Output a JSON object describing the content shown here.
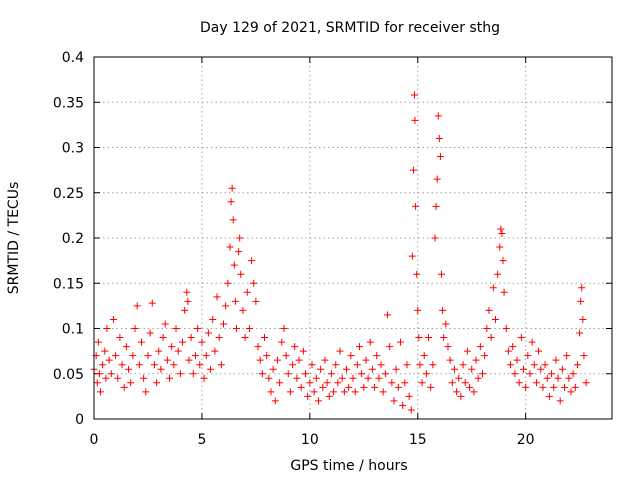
{
  "chart_data": {
    "type": "scatter",
    "title": "Day 129 of 2021, SRMTID for receiver sthg",
    "xlabel": "GPS time / hours",
    "ylabel": "SRMTID / TECUs",
    "xlim": [
      0,
      24
    ],
    "ylim": [
      0,
      0.4
    ],
    "xticks": [
      0,
      5,
      10,
      15,
      20
    ],
    "xtick_labels": [
      "0",
      "5",
      "10",
      "15",
      "20"
    ],
    "yticks": [
      0,
      0.05,
      0.1,
      0.15,
      0.2,
      0.25,
      0.3,
      0.35,
      0.4
    ],
    "ytick_labels": [
      "0",
      "0.05",
      "0.1",
      "0.15",
      "0.2",
      "0.25",
      "0.3",
      "0.35",
      "0.4"
    ],
    "grid": true,
    "marker": "plus",
    "color": "#ff0000",
    "series": [
      {
        "name": "SRMTID",
        "points": [
          [
            0.0,
            0.055
          ],
          [
            0.1,
            0.07
          ],
          [
            0.15,
            0.04
          ],
          [
            0.2,
            0.085
          ],
          [
            0.25,
            0.05
          ],
          [
            0.3,
            0.03
          ],
          [
            0.4,
            0.06
          ],
          [
            0.5,
            0.075
          ],
          [
            0.55,
            0.045
          ],
          [
            0.6,
            0.1
          ],
          [
            0.7,
            0.065
          ],
          [
            0.8,
            0.05
          ],
          [
            0.9,
            0.11
          ],
          [
            1.0,
            0.07
          ],
          [
            1.1,
            0.045
          ],
          [
            1.2,
            0.09
          ],
          [
            1.3,
            0.06
          ],
          [
            1.4,
            0.035
          ],
          [
            1.5,
            0.08
          ],
          [
            1.6,
            0.055
          ],
          [
            1.7,
            0.04
          ],
          [
            1.8,
            0.07
          ],
          [
            1.9,
            0.1
          ],
          [
            2.0,
            0.125
          ],
          [
            2.1,
            0.06
          ],
          [
            2.2,
            0.085
          ],
          [
            2.3,
            0.045
          ],
          [
            2.4,
            0.03
          ],
          [
            2.5,
            0.07
          ],
          [
            2.6,
            0.095
          ],
          [
            2.7,
            0.128
          ],
          [
            2.8,
            0.06
          ],
          [
            2.9,
            0.04
          ],
          [
            3.0,
            0.075
          ],
          [
            3.1,
            0.055
          ],
          [
            3.2,
            0.09
          ],
          [
            3.3,
            0.105
          ],
          [
            3.4,
            0.065
          ],
          [
            3.5,
            0.045
          ],
          [
            3.6,
            0.08
          ],
          [
            3.7,
            0.06
          ],
          [
            3.8,
            0.1
          ],
          [
            3.9,
            0.075
          ],
          [
            4.0,
            0.05
          ],
          [
            4.1,
            0.085
          ],
          [
            4.2,
            0.12
          ],
          [
            4.3,
            0.14
          ],
          [
            4.35,
            0.13
          ],
          [
            4.4,
            0.065
          ],
          [
            4.5,
            0.09
          ],
          [
            4.6,
            0.05
          ],
          [
            4.7,
            0.07
          ],
          [
            4.8,
            0.1
          ],
          [
            4.9,
            0.06
          ],
          [
            5.0,
            0.085
          ],
          [
            5.1,
            0.045
          ],
          [
            5.2,
            0.07
          ],
          [
            5.3,
            0.095
          ],
          [
            5.4,
            0.055
          ],
          [
            5.5,
            0.11
          ],
          [
            5.6,
            0.075
          ],
          [
            5.7,
            0.135
          ],
          [
            5.8,
            0.09
          ],
          [
            5.9,
            0.06
          ],
          [
            6.0,
            0.105
          ],
          [
            6.1,
            0.125
          ],
          [
            6.2,
            0.15
          ],
          [
            6.3,
            0.19
          ],
          [
            6.35,
            0.24
          ],
          [
            6.4,
            0.255
          ],
          [
            6.45,
            0.22
          ],
          [
            6.5,
            0.17
          ],
          [
            6.55,
            0.13
          ],
          [
            6.6,
            0.1
          ],
          [
            6.7,
            0.185
          ],
          [
            6.75,
            0.2
          ],
          [
            6.8,
            0.16
          ],
          [
            6.9,
            0.12
          ],
          [
            7.0,
            0.09
          ],
          [
            7.1,
            0.14
          ],
          [
            7.2,
            0.1
          ],
          [
            7.3,
            0.175
          ],
          [
            7.4,
            0.15
          ],
          [
            7.5,
            0.13
          ],
          [
            7.6,
            0.08
          ],
          [
            7.7,
            0.065
          ],
          [
            7.8,
            0.05
          ],
          [
            7.9,
            0.09
          ],
          [
            8.0,
            0.07
          ],
          [
            8.1,
            0.045
          ],
          [
            8.2,
            0.03
          ],
          [
            8.3,
            0.055
          ],
          [
            8.4,
            0.02
          ],
          [
            8.5,
            0.065
          ],
          [
            8.6,
            0.04
          ],
          [
            8.7,
            0.085
          ],
          [
            8.8,
            0.1
          ],
          [
            8.9,
            0.07
          ],
          [
            9.0,
            0.05
          ],
          [
            9.1,
            0.03
          ],
          [
            9.2,
            0.06
          ],
          [
            9.3,
            0.08
          ],
          [
            9.4,
            0.045
          ],
          [
            9.5,
            0.065
          ],
          [
            9.6,
            0.035
          ],
          [
            9.7,
            0.075
          ],
          [
            9.8,
            0.05
          ],
          [
            9.9,
            0.025
          ],
          [
            10.0,
            0.04
          ],
          [
            10.1,
            0.06
          ],
          [
            10.2,
            0.03
          ],
          [
            10.3,
            0.045
          ],
          [
            10.4,
            0.02
          ],
          [
            10.5,
            0.055
          ],
          [
            10.6,
            0.035
          ],
          [
            10.7,
            0.065
          ],
          [
            10.8,
            0.04
          ],
          [
            10.9,
            0.025
          ],
          [
            11.0,
            0.05
          ],
          [
            11.1,
            0.03
          ],
          [
            11.2,
            0.06
          ],
          [
            11.3,
            0.04
          ],
          [
            11.4,
            0.075
          ],
          [
            11.5,
            0.045
          ],
          [
            11.6,
            0.03
          ],
          [
            11.7,
            0.055
          ],
          [
            11.8,
            0.035
          ],
          [
            11.9,
            0.07
          ],
          [
            12.0,
            0.045
          ],
          [
            12.1,
            0.03
          ],
          [
            12.2,
            0.06
          ],
          [
            12.3,
            0.08
          ],
          [
            12.4,
            0.05
          ],
          [
            12.5,
            0.035
          ],
          [
            12.6,
            0.065
          ],
          [
            12.7,
            0.045
          ],
          [
            12.8,
            0.085
          ],
          [
            12.9,
            0.055
          ],
          [
            13.0,
            0.035
          ],
          [
            13.1,
            0.07
          ],
          [
            13.2,
            0.045
          ],
          [
            13.3,
            0.06
          ],
          [
            13.4,
            0.03
          ],
          [
            13.5,
            0.05
          ],
          [
            13.6,
            0.115
          ],
          [
            13.7,
            0.08
          ],
          [
            13.8,
            0.04
          ],
          [
            13.9,
            0.02
          ],
          [
            14.0,
            0.055
          ],
          [
            14.1,
            0.035
          ],
          [
            14.2,
            0.085
          ],
          [
            14.3,
            0.015
          ],
          [
            14.4,
            0.04
          ],
          [
            14.5,
            0.06
          ],
          [
            14.6,
            0.025
          ],
          [
            14.7,
            0.01
          ],
          [
            14.75,
            0.18
          ],
          [
            14.8,
            0.275
          ],
          [
            14.85,
            0.358
          ],
          [
            14.87,
            0.33
          ],
          [
            14.9,
            0.235
          ],
          [
            14.95,
            0.16
          ],
          [
            15.0,
            0.12
          ],
          [
            15.05,
            0.09
          ],
          [
            15.1,
            0.06
          ],
          [
            15.2,
            0.04
          ],
          [
            15.3,
            0.07
          ],
          [
            15.4,
            0.05
          ],
          [
            15.5,
            0.09
          ],
          [
            15.6,
            0.035
          ],
          [
            15.7,
            0.06
          ],
          [
            15.8,
            0.2
          ],
          [
            15.85,
            0.235
          ],
          [
            15.9,
            0.265
          ],
          [
            15.95,
            0.335
          ],
          [
            16.0,
            0.31
          ],
          [
            16.05,
            0.29
          ],
          [
            16.1,
            0.16
          ],
          [
            16.15,
            0.12
          ],
          [
            16.2,
            0.09
          ],
          [
            16.3,
            0.105
          ],
          [
            16.4,
            0.08
          ],
          [
            16.5,
            0.065
          ],
          [
            16.6,
            0.04
          ],
          [
            16.7,
            0.055
          ],
          [
            16.8,
            0.03
          ],
          [
            16.9,
            0.045
          ],
          [
            17.0,
            0.025
          ],
          [
            17.1,
            0.06
          ],
          [
            17.2,
            0.04
          ],
          [
            17.3,
            0.075
          ],
          [
            17.4,
            0.035
          ],
          [
            17.5,
            0.055
          ],
          [
            17.6,
            0.03
          ],
          [
            17.7,
            0.065
          ],
          [
            17.8,
            0.045
          ],
          [
            17.9,
            0.08
          ],
          [
            18.0,
            0.05
          ],
          [
            18.1,
            0.07
          ],
          [
            18.2,
            0.1
          ],
          [
            18.3,
            0.12
          ],
          [
            18.4,
            0.09
          ],
          [
            18.5,
            0.145
          ],
          [
            18.6,
            0.11
          ],
          [
            18.7,
            0.16
          ],
          [
            18.8,
            0.19
          ],
          [
            18.85,
            0.21
          ],
          [
            18.9,
            0.205
          ],
          [
            18.95,
            0.175
          ],
          [
            19.0,
            0.14
          ],
          [
            19.1,
            0.1
          ],
          [
            19.2,
            0.075
          ],
          [
            19.3,
            0.06
          ],
          [
            19.4,
            0.08
          ],
          [
            19.5,
            0.05
          ],
          [
            19.6,
            0.065
          ],
          [
            19.7,
            0.04
          ],
          [
            19.8,
            0.09
          ],
          [
            19.9,
            0.055
          ],
          [
            20.0,
            0.035
          ],
          [
            20.1,
            0.07
          ],
          [
            20.2,
            0.05
          ],
          [
            20.3,
            0.085
          ],
          [
            20.4,
            0.06
          ],
          [
            20.5,
            0.04
          ],
          [
            20.6,
            0.075
          ],
          [
            20.7,
            0.055
          ],
          [
            20.8,
            0.035
          ],
          [
            20.9,
            0.06
          ],
          [
            21.0,
            0.045
          ],
          [
            21.1,
            0.025
          ],
          [
            21.2,
            0.05
          ],
          [
            21.3,
            0.035
          ],
          [
            21.4,
            0.065
          ],
          [
            21.5,
            0.045
          ],
          [
            21.6,
            0.02
          ],
          [
            21.7,
            0.055
          ],
          [
            21.8,
            0.035
          ],
          [
            21.9,
            0.07
          ],
          [
            22.0,
            0.045
          ],
          [
            22.1,
            0.03
          ],
          [
            22.2,
            0.05
          ],
          [
            22.3,
            0.035
          ],
          [
            22.4,
            0.06
          ],
          [
            22.5,
            0.095
          ],
          [
            22.55,
            0.13
          ],
          [
            22.6,
            0.145
          ],
          [
            22.65,
            0.11
          ],
          [
            22.7,
            0.07
          ],
          [
            22.8,
            0.04
          ]
        ]
      }
    ]
  }
}
